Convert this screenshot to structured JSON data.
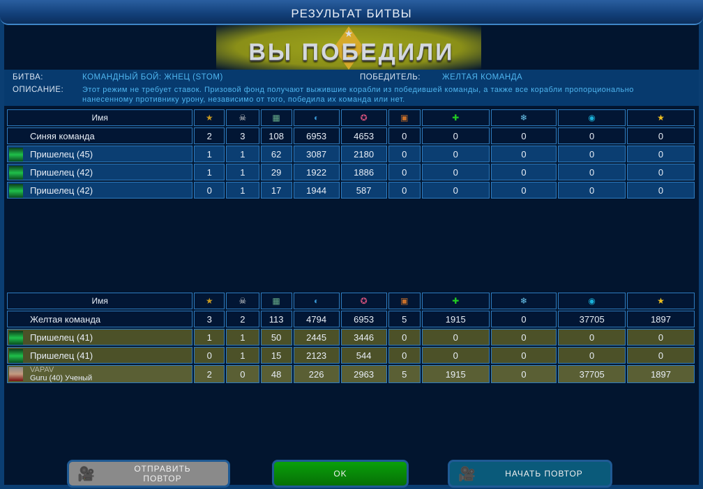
{
  "window": {
    "title": "РЕЗУЛЬТАТ БИТВЫ"
  },
  "banner": {
    "text": "ВЫ ПОБЕДИЛИ"
  },
  "info": {
    "battle_label": "БИТВА:",
    "battle_value": "КОМАНДНЫЙ БОЙ: ЖНЕЦ (STOM)",
    "winner_label": "ПОБЕДИТЕЛЬ:",
    "winner_value": "ЖЕЛТАЯ КОМАНДА",
    "desc_label": "ОПИСАНИЕ:",
    "desc_line1": "Этот режим не требует ставок. Призовой фонд получают выжившие корабли из победившей команды, а также все корабли пропорционально",
    "desc_line2": "нанесенному противнику урону, независимо от того, победила их команда или нет."
  },
  "columns": {
    "name": "Имя",
    "icons": [
      "medal-icon",
      "skull-icon",
      "cargo-icon",
      "damage-taken-icon",
      "damage-dealt-icon",
      "chest-icon",
      "repair-icon",
      "crystal-icon",
      "credits-icon",
      "star-icon"
    ]
  },
  "blue_team": {
    "name": "Синяя команда",
    "values": [
      "2",
      "3",
      "108",
      "6953",
      "4653",
      "0",
      "0",
      "0",
      "0",
      "0"
    ],
    "players": [
      {
        "name": "Пришелец (45)",
        "values": [
          "1",
          "1",
          "62",
          "3087",
          "2180",
          "0",
          "0",
          "0",
          "0",
          "0"
        ]
      },
      {
        "name": "Пришелец (42)",
        "values": [
          "1",
          "1",
          "29",
          "1922",
          "1886",
          "0",
          "0",
          "0",
          "0",
          "0"
        ]
      },
      {
        "name": "Пришелец (42)",
        "values": [
          "0",
          "1",
          "17",
          "1944",
          "587",
          "0",
          "0",
          "0",
          "0",
          "0"
        ]
      }
    ]
  },
  "yellow_team": {
    "name": "Желтая команда",
    "values": [
      "3",
      "2",
      "113",
      "4794",
      "6953",
      "5",
      "1915",
      "0",
      "37705",
      "1897"
    ],
    "players": [
      {
        "name": "Пришелец (41)",
        "values": [
          "1",
          "1",
          "50",
          "2445",
          "3446",
          "0",
          "0",
          "0",
          "0",
          "0"
        ]
      },
      {
        "name": "Пришелец (41)",
        "values": [
          "0",
          "1",
          "15",
          "2123",
          "544",
          "0",
          "0",
          "0",
          "0",
          "0"
        ]
      },
      {
        "name": "VAPAV",
        "subtitle": "Guru (40) Ученый",
        "values": [
          "2",
          "0",
          "48",
          "226",
          "2963",
          "5",
          "1915",
          "0",
          "37705",
          "1897"
        ]
      }
    ]
  },
  "buttons": {
    "send_replay": "ОТПРАВИТЬ ПОВТОР",
    "ok": "OK",
    "start_replay": "НАЧАТЬ ПОВТОР"
  },
  "colors": {
    "blue_row": "#0b3e72",
    "yellow_row": "#4c5128",
    "ok_button": "#0a8a0a",
    "accent": "#4fb6f0"
  }
}
